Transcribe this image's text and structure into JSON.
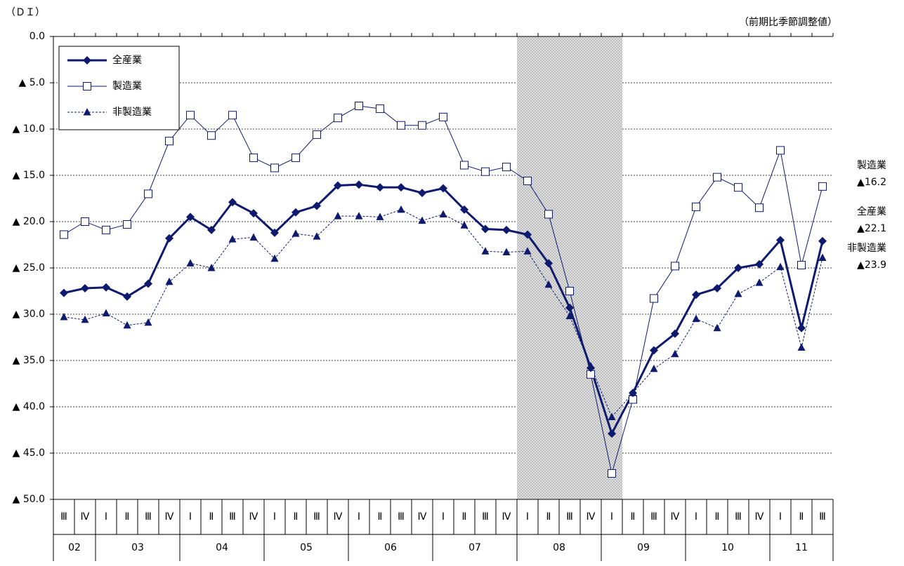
{
  "header": {
    "unit": "（ＤＩ）",
    "note": "（前期比季節調整値）"
  },
  "chart_data": {
    "type": "line",
    "categories": [
      "Ⅲ",
      "Ⅳ",
      "Ⅰ",
      "Ⅱ",
      "Ⅲ",
      "Ⅳ",
      "Ⅰ",
      "Ⅱ",
      "Ⅲ",
      "Ⅳ",
      "Ⅰ",
      "Ⅱ",
      "Ⅲ",
      "Ⅳ",
      "Ⅰ",
      "Ⅱ",
      "Ⅲ",
      "Ⅳ",
      "Ⅰ",
      "Ⅱ",
      "Ⅲ",
      "Ⅳ",
      "Ⅰ",
      "Ⅱ",
      "Ⅲ",
      "Ⅳ",
      "Ⅰ",
      "Ⅱ",
      "Ⅲ",
      "Ⅳ",
      "Ⅰ",
      "Ⅱ",
      "Ⅲ",
      "Ⅳ",
      "Ⅰ",
      "Ⅱ",
      "Ⅲ"
    ],
    "year_labels": [
      "02",
      "03",
      "04",
      "05",
      "06",
      "07",
      "08",
      "09",
      "10",
      "11"
    ],
    "series": [
      {
        "name": "全産業",
        "color": "#0d1a6e",
        "marker": "diamond",
        "values": [
          -27.7,
          -27.2,
          -27.1,
          -28.1,
          -26.7,
          -21.8,
          -19.5,
          -20.9,
          -17.9,
          -19.1,
          -21.2,
          -19.0,
          -18.3,
          -16.1,
          -16.0,
          -16.3,
          -16.3,
          -16.9,
          -16.4,
          -18.7,
          -20.8,
          -20.9,
          -21.4,
          -24.5,
          -29.3,
          -35.8,
          -42.9,
          -38.5,
          -33.9,
          -32.1,
          -27.9,
          -27.2,
          -25.0,
          -24.6,
          -22.0,
          -31.5,
          -22.1
        ]
      },
      {
        "name": "製造業",
        "color": "#0d1a6e",
        "marker": "square",
        "values": [
          -21.4,
          -20.0,
          -20.9,
          -20.3,
          -17.0,
          -11.3,
          -8.5,
          -10.7,
          -8.5,
          -13.1,
          -14.2,
          -13.1,
          -10.6,
          -8.8,
          -7.5,
          -7.8,
          -9.6,
          -9.6,
          -8.7,
          -13.9,
          -14.6,
          -14.1,
          -15.6,
          -19.2,
          -27.5,
          -36.5,
          -47.2,
          -39.2,
          -28.3,
          -24.8,
          -18.4,
          -15.2,
          -16.3,
          -18.5,
          -12.3,
          -24.7,
          -16.2
        ]
      },
      {
        "name": "非製造業",
        "color": "#0d1a6e",
        "marker": "triangle",
        "values": [
          -30.3,
          -30.6,
          -29.9,
          -31.2,
          -30.9,
          -26.5,
          -24.5,
          -25.0,
          -21.9,
          -21.7,
          -24.0,
          -21.3,
          -21.6,
          -19.4,
          -19.4,
          -19.5,
          -18.7,
          -19.9,
          -19.2,
          -20.4,
          -23.2,
          -23.3,
          -23.2,
          -26.8,
          -30.2,
          -35.6,
          -41.1,
          -38.5,
          -35.9,
          -34.3,
          -30.5,
          -31.5,
          -27.8,
          -26.6,
          -24.9,
          -33.6,
          -23.9
        ]
      }
    ],
    "ylim": [
      -50,
      0
    ],
    "yticks": [
      {
        "value": 0,
        "label": "0.0"
      },
      {
        "value": -5,
        "label": "▲ 5.0"
      },
      {
        "value": -10,
        "label": "▲ 10.0"
      },
      {
        "value": -15,
        "label": "▲ 15.0"
      },
      {
        "value": -20,
        "label": "▲ 20.0"
      },
      {
        "value": -25,
        "label": "▲ 25.0"
      },
      {
        "value": -30,
        "label": "▲ 30.0"
      },
      {
        "value": -35,
        "label": "▲ 35.0"
      },
      {
        "value": -40,
        "label": "▲ 40.0"
      },
      {
        "value": -45,
        "label": "▲ 45.0"
      },
      {
        "value": -50,
        "label": "▲ 50.0"
      }
    ],
    "y_inverted": true,
    "grid": true,
    "shade": [
      22,
      26
    ],
    "legend": "upper left",
    "annotations": [
      {
        "text": "製造業",
        "label": "▲16.2"
      },
      {
        "text": "全産業",
        "label": "▲22.1"
      },
      {
        "text": "非製造業",
        "label": "▲23.9"
      }
    ]
  }
}
